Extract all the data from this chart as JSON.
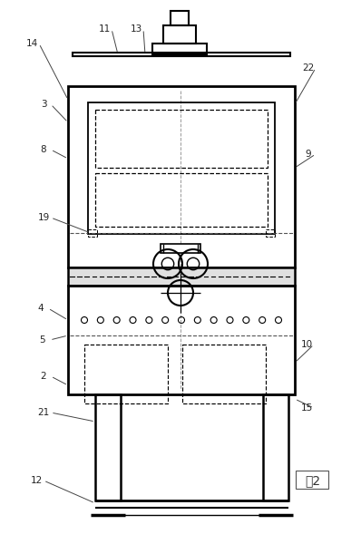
{
  "bg_color": "#ffffff",
  "lc": "#000000",
  "fig2_text": "图2"
}
